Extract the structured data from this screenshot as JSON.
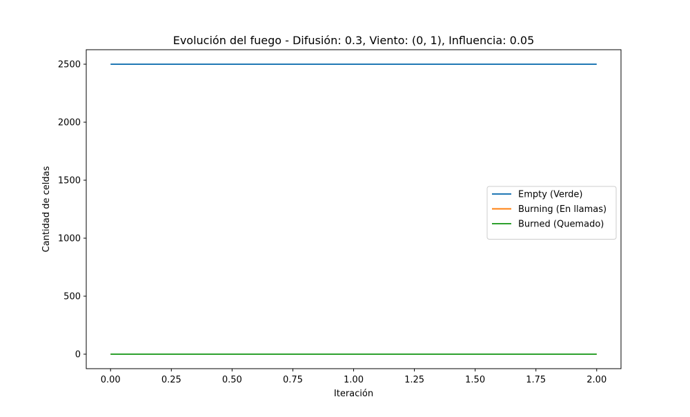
{
  "chart_data": {
    "type": "line",
    "title": "Evolución del fuego - Difusión: 0.3, Viento: (0, 1), Influencia: 0.05",
    "xlabel": "Iteración",
    "ylabel": "Cantidad de celdas",
    "xlim": [
      -0.1,
      2.1
    ],
    "ylim": [
      -125,
      2625
    ],
    "x_ticks": [
      0,
      0.25,
      0.5,
      0.75,
      1,
      1.25,
      1.5,
      1.75,
      2
    ],
    "x_tick_labels": [
      "0.00",
      "0.25",
      "0.50",
      "0.75",
      "1.00",
      "1.25",
      "1.50",
      "1.75",
      "2.00"
    ],
    "y_ticks": [
      0,
      500,
      1000,
      1500,
      2000,
      2500
    ],
    "y_tick_labels": [
      "0",
      "500",
      "1000",
      "1500",
      "2000",
      "2500"
    ],
    "x": [
      0,
      1,
      2
    ],
    "series": [
      {
        "name": "Empty (Verde)",
        "values": [
          2500,
          2500,
          2500
        ],
        "color": "#1f77b4"
      },
      {
        "name": "Burning (En llamas)",
        "values": [
          0,
          0,
          0
        ],
        "color": "#ff7f0e"
      },
      {
        "name": "Burned (Quemado)",
        "values": [
          0,
          0,
          0
        ],
        "color": "#2ca02c"
      }
    ],
    "grid": false,
    "legend_position": "center-right"
  }
}
